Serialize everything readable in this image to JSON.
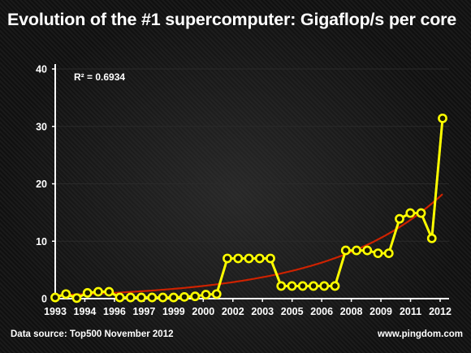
{
  "header": {
    "title": "Evolution of the #1 supercomputer: Gigaflop/s per core"
  },
  "footer": {
    "source": "Data source: Top500 November 2012",
    "site": "www.pingdom.com"
  },
  "colors": {
    "series": "#ffff00",
    "trend": "#cc2200",
    "marker_fill": "#1a1a00",
    "axis": "#ffffff",
    "grid": "#2a2a2a",
    "background": "#111111"
  },
  "chart_data": {
    "type": "line",
    "title": "Evolution of the #1 supercomputer: Gigaflop/s per core",
    "xlabel": "",
    "ylabel": "",
    "ylim": [
      0,
      40
    ],
    "yticks": [
      0,
      10,
      20,
      30,
      40
    ],
    "xtick_labels": [
      "1993",
      "1994",
      "1996",
      "1997",
      "1999",
      "2000",
      "2002",
      "2003",
      "2005",
      "2006",
      "2008",
      "2009",
      "2011",
      "2012"
    ],
    "grid": true,
    "annotation": "R² = 0.6934",
    "series": [
      {
        "values": [
          0.2,
          0.8,
          0.1,
          1.0,
          1.2,
          1.2,
          0.2,
          0.2,
          0.2,
          0.2,
          0.2,
          0.2,
          0.3,
          0.4,
          0.7,
          0.8,
          7.0,
          7.0,
          7.0,
          7.0,
          7.0,
          2.2,
          2.2,
          2.2,
          2.2,
          2.2,
          2.2,
          8.4,
          8.4,
          8.4,
          7.9,
          7.9,
          13.9,
          14.9,
          14.9,
          10.5,
          31.4
        ]
      }
    ],
    "trendline": {
      "type": "exponential",
      "r_squared": 0.6934,
      "start_value": 0.6,
      "end_value": 18.2
    }
  }
}
